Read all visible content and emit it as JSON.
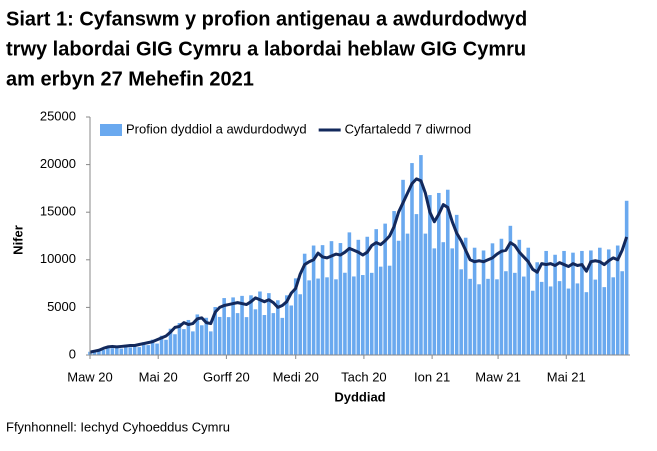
{
  "chart_data": {
    "type": "bar",
    "title": [
      "Siart 1: Cyfanswm y profion antigenau a awdurdodwyd",
      "trwy labordai GIG Cymru a labordai heblaw GIG Cymru",
      "am erbyn 27 Mehefin 2021"
    ],
    "x_label": "Dyddiad",
    "y_label": "Nifer",
    "source": "Ffynhonnell: Iechyd Cyhoeddus Cymru",
    "x": [
      0,
      4,
      8,
      12,
      16,
      20,
      24,
      28,
      32,
      36,
      40,
      44,
      48,
      52,
      56,
      60,
      64,
      68,
      72,
      76,
      80,
      84,
      88,
      92,
      96,
      100,
      104,
      108,
      112,
      116,
      120,
      124,
      128,
      132,
      136,
      140,
      144,
      148,
      152,
      156,
      160,
      164,
      168,
      172,
      176,
      180,
      184,
      188,
      192,
      196,
      200,
      204,
      208,
      212,
      216,
      220,
      224,
      228,
      232,
      236,
      240,
      244,
      248,
      252,
      256,
      260,
      264,
      268,
      272,
      276,
      280,
      284,
      288,
      292,
      296,
      300,
      304,
      308,
      312,
      316,
      320,
      324,
      328,
      332,
      336,
      340,
      344,
      348,
      352,
      356,
      360,
      364,
      368,
      372,
      376,
      380,
      384,
      388,
      392,
      396,
      400,
      404,
      408,
      412,
      416,
      420,
      424,
      428,
      432,
      436,
      440,
      444,
      448,
      452,
      456,
      460,
      464,
      468,
      472,
      476,
      480
    ],
    "xlim": [
      0,
      483
    ],
    "xticks": [
      {
        "value": 0,
        "label": "Maw 20"
      },
      {
        "value": 61,
        "label": "Mai 20"
      },
      {
        "value": 122,
        "label": "Gorff 20"
      },
      {
        "value": 184,
        "label": "Medi 20"
      },
      {
        "value": 245,
        "label": "Tach 20"
      },
      {
        "value": 306,
        "label": "Ion 21"
      },
      {
        "value": 365,
        "label": "Maw 21"
      },
      {
        "value": 426,
        "label": "Mai 21"
      }
    ],
    "ylim": [
      0,
      25000
    ],
    "yticks": [
      0,
      5000,
      10000,
      15000,
      20000,
      25000
    ],
    "legend": "top",
    "series": [
      {
        "name": "Profion dyddiol a awdurdodwyd",
        "type": "bar",
        "color": "#6aa9ef",
        "values": [
          340,
          320,
          580,
          530,
          950,
          720,
          980,
          680,
          1060,
          800,
          1150,
          830,
          1340,
          1040,
          1610,
          1200,
          2020,
          1600,
          2760,
          2180,
          3360,
          2720,
          3680,
          2480,
          4260,
          3120,
          3910,
          2480,
          5040,
          4000,
          5980,
          3980,
          6050,
          4400,
          6210,
          3980,
          6270,
          4800,
          6670,
          4200,
          6500,
          4400,
          5750,
          3900,
          6270,
          5200,
          8050,
          6380,
          10640,
          7840,
          11500,
          8030,
          11540,
          8160,
          11960,
          7950,
          11760,
          8640,
          12880,
          8250,
          12100,
          8400,
          12420,
          8630,
          13220,
          9280,
          13800,
          9380,
          15120,
          12000,
          18400,
          12750,
          20160,
          14800,
          21000,
          12750,
          16800,
          11200,
          17020,
          11850,
          17360,
          11200,
          14720,
          9000,
          12320,
          8000,
          11270,
          7430,
          10980,
          8000,
          11730,
          7950,
          12210,
          8800,
          13570,
          8630,
          12100,
          8240,
          11270,
          6750,
          9740,
          7680,
          10930,
          7200,
          10530,
          7760,
          10930,
          6980,
          10750,
          7520,
          10930,
          6600,
          10980,
          7920,
          11270,
          7130,
          11090,
          8160,
          11500,
          8800,
          16200
        ]
      },
      {
        "name": "Cyfartaledd 7 diwrnod",
        "type": "line",
        "color": "#13295c",
        "values": [
          300,
          400,
          500,
          700,
          850,
          900,
          850,
          900,
          950,
          1000,
          1000,
          1100,
          1200,
          1300,
          1400,
          1600,
          1800,
          2000,
          2400,
          2900,
          3000,
          3400,
          3200,
          3300,
          3800,
          3900,
          3400,
          3300,
          4500,
          5000,
          5200,
          5300,
          5400,
          5500,
          5400,
          5300,
          5600,
          6000,
          5800,
          5600,
          5800,
          5500,
          5000,
          5200,
          5600,
          6500,
          7000,
          8500,
          9500,
          9800,
          10000,
          10700,
          10300,
          10200,
          10400,
          10600,
          10500,
          10800,
          11200,
          11000,
          10800,
          10500,
          10800,
          11500,
          11800,
          11600,
          12000,
          12500,
          13500,
          15000,
          16000,
          17000,
          18000,
          18500,
          18300,
          17000,
          15000,
          14000,
          14800,
          15800,
          15500,
          14000,
          12800,
          12000,
          11000,
          10000,
          9800,
          9900,
          9800,
          10000,
          10200,
          10600,
          10900,
          11000,
          11800,
          11500,
          10800,
          10300,
          9800,
          9000,
          8700,
          9600,
          9500,
          9600,
          9400,
          9700,
          9500,
          9300,
          9600,
          9400,
          9500,
          8800,
          9800,
          9900,
          9800,
          9500,
          9900,
          10200,
          10000,
          11000,
          12400
        ]
      }
    ]
  }
}
